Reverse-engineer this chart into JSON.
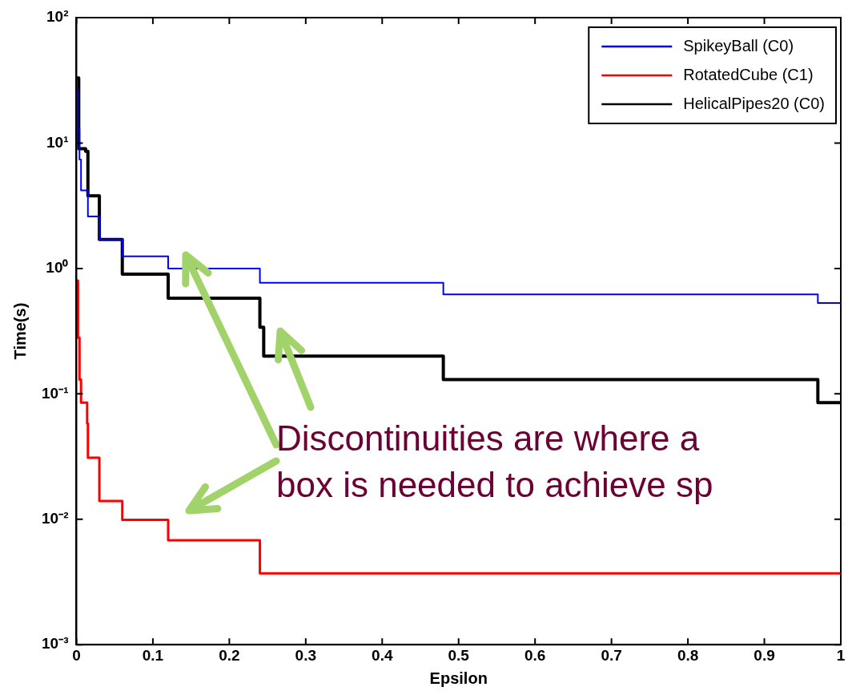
{
  "chart_data": {
    "type": "step",
    "xlabel": "Epsilon",
    "ylabel": "Time(s)",
    "xlim": [
      0,
      1
    ],
    "xticks": [
      0,
      0.1,
      0.2,
      0.3,
      0.4,
      0.5,
      0.6,
      0.7,
      0.8,
      0.9,
      1
    ],
    "ylim": [
      0.001,
      100
    ],
    "yticks": [
      {
        "value": 0.001,
        "label": "10⁻³"
      },
      {
        "value": 0.01,
        "label": "10⁻²"
      },
      {
        "value": 0.1,
        "label": "10⁻¹"
      },
      {
        "value": 1,
        "label": "10⁰"
      },
      {
        "value": 10,
        "label": "10¹"
      },
      {
        "value": 100,
        "label": "10²"
      }
    ],
    "log": "y",
    "grid": false,
    "legend": "top right",
    "annotations": [
      "Discontinuities are where a\nbox is needed to achieve sp"
    ],
    "series": [
      {
        "name": "SpikeyBall (C0)",
        "color": "#0000ff",
        "x": [
          0.001,
          0.002,
          0.004,
          0.006,
          0.015,
          0.03,
          0.06,
          0.12,
          0.24,
          0.48,
          0.97,
          1
        ],
        "values": [
          27,
          13,
          7.4,
          4.2,
          2.6,
          1.7,
          1.25,
          1.0,
          0.77,
          0.62,
          0.53,
          0.53
        ]
      },
      {
        "name": "RotatedCube (C1)",
        "color": "#ff0000",
        "x": [
          0,
          0.002,
          0.004,
          0.006,
          0.014,
          0.015,
          0.03,
          0.06,
          0.12,
          0.24,
          1
        ],
        "values": [
          0.8,
          0.28,
          0.13,
          0.085,
          0.058,
          0.031,
          0.014,
          0.0099,
          0.0068,
          0.0037,
          0.0037
        ]
      },
      {
        "name": "HelicalPipes20 (C0)",
        "color": "#000000",
        "x": [
          0,
          0.003,
          0.012,
          0.015,
          0.03,
          0.06,
          0.12,
          0.24,
          0.245,
          0.48,
          0.97,
          1
        ],
        "values": [
          33,
          9,
          8.6,
          3.8,
          1.7,
          0.9,
          0.58,
          0.34,
          0.2,
          0.13,
          0.085,
          0.085
        ]
      }
    ]
  }
}
